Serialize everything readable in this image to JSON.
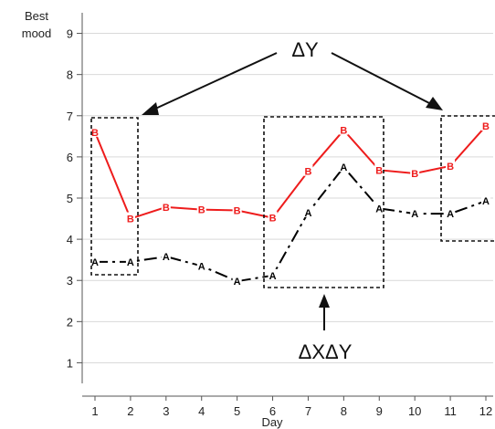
{
  "chart_data": {
    "type": "line",
    "xlabel": "Day",
    "ylabel_lines": [
      "Best",
      "mood"
    ],
    "xlim": [
      1,
      12
    ],
    "ylim": [
      0.5,
      9.5
    ],
    "x": [
      1,
      2,
      3,
      4,
      5,
      6,
      7,
      8,
      9,
      10,
      11,
      12
    ],
    "x_ticks": [
      1,
      2,
      3,
      4,
      5,
      6,
      7,
      8,
      9,
      10,
      11,
      12
    ],
    "y_ticks": [
      1,
      2,
      3,
      4,
      5,
      6,
      7,
      8,
      9
    ],
    "grid": "horizontal",
    "series": [
      {
        "marker": "A",
        "color": "#000000",
        "line_style": "dash-dot",
        "values": [
          3.45,
          3.45,
          3.58,
          3.35,
          2.98,
          3.12,
          4.65,
          5.75,
          4.75,
          4.62,
          4.62,
          4.93
        ]
      },
      {
        "marker": "B",
        "color": "#ee1c1c",
        "line_style": "solid",
        "values": [
          6.6,
          4.5,
          4.78,
          4.72,
          4.7,
          4.52,
          5.65,
          6.65,
          5.68,
          5.6,
          5.78,
          6.75
        ]
      }
    ],
    "annotations": [
      {
        "text": "ΔY"
      },
      {
        "text": "ΔXΔY"
      }
    ]
  }
}
